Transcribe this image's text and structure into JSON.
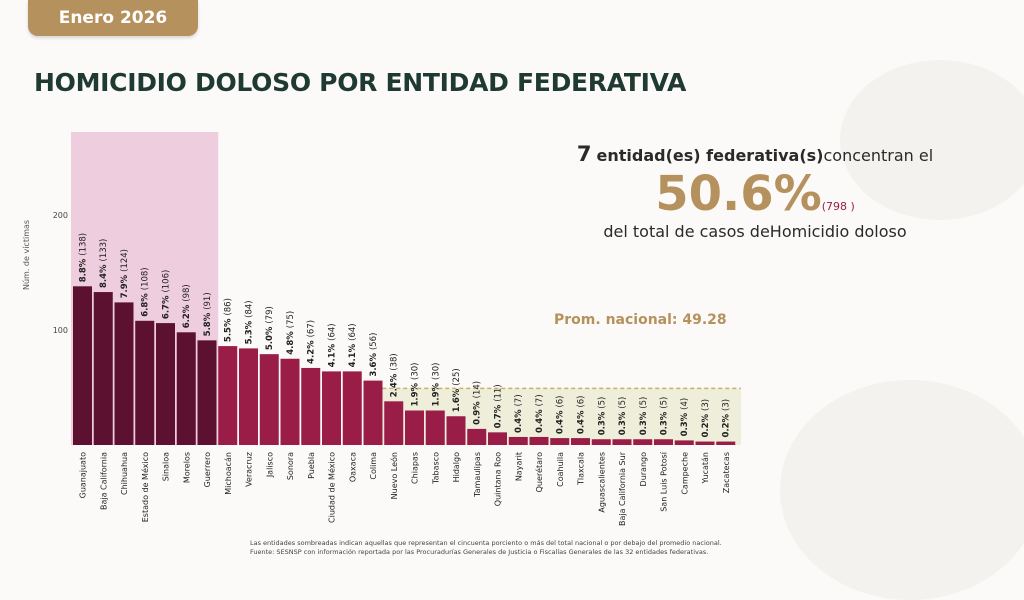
{
  "badge": "Enero 2026",
  "title": "HOMICIDIO DOLOSO POR ENTIDAD FEDERATIVA",
  "summary": {
    "count": "7",
    "entities_text": "entidad(es) federativa(s)",
    "concentrate_text": "concentran el",
    "percent": "50.6%",
    "cases": "(798 )",
    "line3": "del total de casos deHomicidio doloso"
  },
  "average_label": "Prom. nacional: 49.28",
  "footnote1": "Las entidades sombreadas indican aquellas que representan el cincuenta porciento o más del total nacional o por debajo del promedio nacional.",
  "footnote2": "Fuente: SESNSP con información reportada por las Procuradurías Generales de Justicia o Fiscalías Generales de las 32 entidades federativas.",
  "colors": {
    "dark_bar": "#5c1130",
    "bar": "#9a1d48",
    "pink_shade": "#e9bfd6",
    "avg_shade": "#ecebd6",
    "avg_line": "#c9b25c",
    "gold": "#b5915d"
  },
  "chart_data": {
    "type": "bar",
    "title": "HOMICIDIO DOLOSO POR ENTIDAD FEDERATIVA",
    "ylabel": "Núm. de víctimas",
    "ylim": [
      0,
      200
    ],
    "yticks": [
      100,
      200
    ],
    "average": 49.28,
    "top_group_size": 7,
    "categories": [
      "Guanajuato",
      "Baja California",
      "Chihuahua",
      "Estado de México",
      "Sinaloa",
      "Morelos",
      "Guerrero",
      "Michoacán",
      "Veracruz",
      "Jalisco",
      "Sonora",
      "Puebla",
      "Ciudad de México",
      "Oaxaca",
      "Colima",
      "Nuevo León",
      "Chiapas",
      "Tabasco",
      "Hidalgo",
      "Tamaulipas",
      "Quintana Roo",
      "Nayarit",
      "Querétaro",
      "Coahuila",
      "Tlaxcala",
      "Aguascalientes",
      "Baja California Sur",
      "Durango",
      "San Luis Potosí",
      "Campeche",
      "Yucatán",
      "Zacatecas"
    ],
    "values": [
      138,
      133,
      124,
      108,
      106,
      98,
      91,
      86,
      84,
      79,
      75,
      67,
      64,
      64,
      56,
      38,
      30,
      30,
      25,
      14,
      11,
      7,
      7,
      6,
      6,
      5,
      5,
      5,
      5,
      4,
      3,
      3
    ],
    "percents": [
      "8.8%",
      "8.4%",
      "7.9%",
      "6.8%",
      "6.7%",
      "6.2%",
      "5.8%",
      "5.5%",
      "5.3%",
      "5.0%",
      "4.8%",
      "4.2%",
      "4.1%",
      "4.1%",
      "3.6%",
      "2.4%",
      "1.9%",
      "1.9%",
      "1.6%",
      "0.9%",
      "0.7%",
      "0.4%",
      "0.4%",
      "0.4%",
      "0.4%",
      "0.3%",
      "0.3%",
      "0.3%",
      "0.3%",
      "0.3%",
      "0.2%",
      "0.2%"
    ]
  }
}
